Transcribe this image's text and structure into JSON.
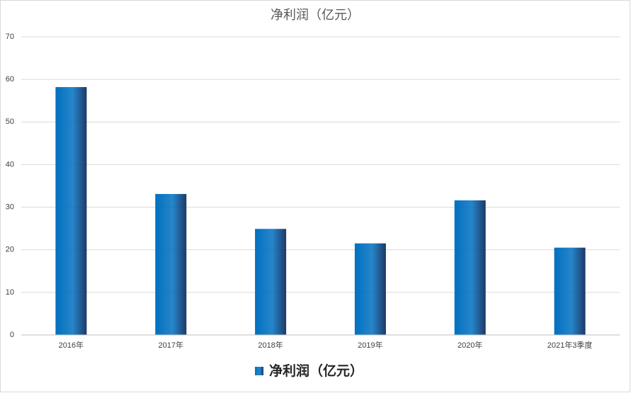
{
  "chart_data": {
    "type": "bar",
    "title": "净利润（亿元）",
    "categories": [
      "2016年",
      "2017年",
      "2018年",
      "2019年",
      "2020年",
      "2021年3季度"
    ],
    "series": [
      {
        "name": "净利润（亿元）",
        "color": "#0070c0",
        "values": [
          58.2,
          33.1,
          24.9,
          21.5,
          31.6,
          20.5
        ]
      }
    ],
    "ylim": [
      0,
      70
    ],
    "yticks": [
      0,
      10,
      20,
      30,
      40,
      50,
      60,
      70
    ],
    "grid": true,
    "legend": "bottom"
  }
}
